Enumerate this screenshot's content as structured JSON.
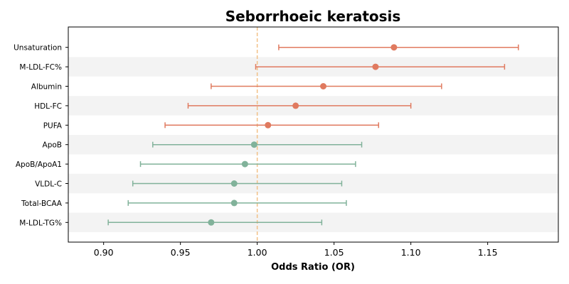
{
  "chart_data": {
    "type": "scatter",
    "subtype": "forest-plot",
    "title": "Seborrhoeic keratosis",
    "xlabel": "Odds Ratio (OR)",
    "ylabel": "",
    "xlim": [
      0.877,
      1.196
    ],
    "x_ticks": [
      0.9,
      0.95,
      1.0,
      1.05,
      1.1,
      1.15
    ],
    "x_tick_labels": [
      "0.90",
      "0.95",
      "1.00",
      "1.05",
      "1.10",
      "1.15"
    ],
    "reference_line": 1.0,
    "grid": false,
    "alternating_row_shading": true,
    "colors": {
      "positive": "#e07a5f",
      "negative": "#81b29a",
      "reference_line": "#f2c187",
      "row_shade": "#f3f3f3"
    },
    "rows": [
      {
        "label": "Unsaturation",
        "or": 1.089,
        "ci_low": 1.014,
        "ci_high": 1.17
      },
      {
        "label": "M-LDL-FC%",
        "or": 1.077,
        "ci_low": 0.999,
        "ci_high": 1.161
      },
      {
        "label": "Albumin",
        "or": 1.043,
        "ci_low": 0.97,
        "ci_high": 1.12
      },
      {
        "label": "HDL-FC",
        "or": 1.025,
        "ci_low": 0.955,
        "ci_high": 1.1
      },
      {
        "label": "PUFA",
        "or": 1.007,
        "ci_low": 0.94,
        "ci_high": 1.079
      },
      {
        "label": "ApoB",
        "or": 0.998,
        "ci_low": 0.932,
        "ci_high": 1.068
      },
      {
        "label": "ApoB/ApoA1",
        "or": 0.992,
        "ci_low": 0.924,
        "ci_high": 1.064
      },
      {
        "label": "VLDL-C",
        "or": 0.985,
        "ci_low": 0.919,
        "ci_high": 1.055
      },
      {
        "label": "Total-BCAA",
        "or": 0.985,
        "ci_low": 0.916,
        "ci_high": 1.058
      },
      {
        "label": "M-LDL-TG%",
        "or": 0.97,
        "ci_low": 0.903,
        "ci_high": 1.042
      }
    ]
  }
}
